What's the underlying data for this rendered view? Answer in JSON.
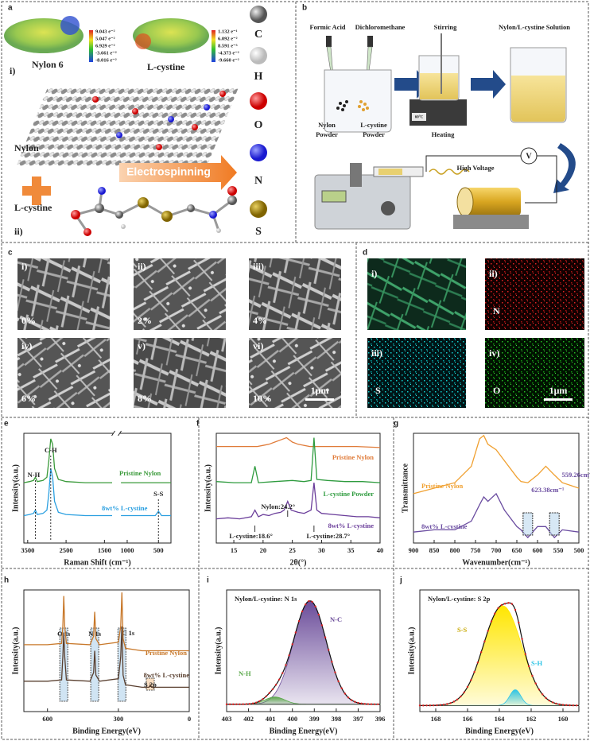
{
  "panels": {
    "a": {
      "letter": "a",
      "molecule_1": "Nylon 6",
      "molecule_2": "L-cystine",
      "colorbar_1": [
        "9.043 e⁻²",
        "5.047 e⁻²",
        "6.929 e⁻²",
        "-3.661 e⁻²",
        "-8.016 e⁻²"
      ],
      "colorbar_2": [
        "1.132 e⁻¹",
        "6.092 e⁻²",
        "8.591 e⁻³",
        "-4.373 e⁻²",
        "-9.660 e⁻²"
      ],
      "part_1": "i)",
      "part_2": "ii)",
      "polymer": "Nylon",
      "additive": "L-cystine",
      "process": "Electrospinning",
      "elements": [
        "C",
        "H",
        "O",
        "N",
        "S"
      ]
    },
    "b": {
      "letter": "b",
      "solvent_1": "Formic Acid",
      "solvent_2": "Dichloromethane",
      "step_1": "Stirring",
      "product": "Nylon/L-cystine Solution",
      "powder_1": [
        "Nylon",
        "Powder"
      ],
      "powder_2": [
        "L-cystine",
        "Powder"
      ],
      "step_2": "Heating",
      "temperature": "60°C",
      "voltage_symbol": "V",
      "voltage": "High Voltage"
    },
    "c": {
      "letter": "c",
      "images": [
        {
          "label": "i)",
          "content": "0%"
        },
        {
          "label": "ii)",
          "content": "2%"
        },
        {
          "label": "iii)",
          "content": "4%"
        },
        {
          "label": "iv)",
          "content": "6%"
        },
        {
          "label": "v)",
          "content": "8%"
        },
        {
          "label": "vi)",
          "content": "10%"
        }
      ],
      "scale_bar": "1μm"
    },
    "d": {
      "letter": "d",
      "images": [
        {
          "label": "i)"
        },
        {
          "label": "ii)",
          "element": "N"
        },
        {
          "label": "iii)",
          "element": "S"
        },
        {
          "label": "iv)",
          "element": "O"
        }
      ],
      "scale_bar": "1μm"
    },
    "e": {
      "letter": "e",
      "type": "line",
      "xlabel": "Raman Shift (cm⁻¹)",
      "ylabel": "Intensity(a.u.)",
      "x_segments": [
        [
          3600,
          1300
        ],
        [
          1100,
          300
        ]
      ],
      "ylim": [
        0,
        1
      ],
      "xticks": [
        3500,
        2500,
        1500,
        1000,
        500
      ],
      "series": [
        {
          "name": "Pristine Nylon",
          "color": "#3a9a3a",
          "x": [
            3600,
            3450,
            3350,
            3300,
            3250,
            3100,
            3000,
            2950,
            2900,
            2850,
            2800,
            2700,
            2500,
            2000,
            1500,
            1300,
            1200,
            1100,
            900,
            700,
            550,
            500,
            450,
            300
          ],
          "values": [
            0.55,
            0.56,
            0.57,
            0.6,
            0.56,
            0.57,
            0.6,
            0.75,
            0.95,
            0.9,
            0.68,
            0.58,
            0.56,
            0.55,
            0.55,
            0.55,
            null,
            0.55,
            0.55,
            0.55,
            0.55,
            0.55,
            0.55,
            0.55
          ]
        },
        {
          "name": "8wt% L-cystine",
          "color": "#2a9fe0",
          "x": [
            3600,
            3450,
            3350,
            3300,
            3250,
            3100,
            3000,
            2950,
            2900,
            2850,
            2800,
            2700,
            2500,
            2000,
            1500,
            1300,
            1200,
            1100,
            900,
            700,
            550,
            500,
            450,
            300
          ],
          "values": [
            0.25,
            0.26,
            0.27,
            0.3,
            0.26,
            0.27,
            0.3,
            0.45,
            0.68,
            0.6,
            0.38,
            0.28,
            0.26,
            0.25,
            0.25,
            0.25,
            null,
            0.25,
            0.25,
            0.25,
            0.25,
            0.29,
            0.25,
            0.25
          ]
        }
      ],
      "annotations": [
        {
          "label": "C-H",
          "x": 2900
        },
        {
          "label": "N-H",
          "x": 3300
        },
        {
          "label": "S-S",
          "x": 500
        }
      ]
    },
    "f": {
      "letter": "f",
      "type": "line",
      "xlabel": "2θ(°)",
      "ylabel": "Intensity(a.u.)",
      "xlim": [
        12,
        40
      ],
      "ylim": [
        0,
        1
      ],
      "xticks": [
        15,
        20,
        25,
        30,
        35,
        40
      ],
      "series": [
        {
          "name": "Pristine Nylon",
          "color": "#e07b39",
          "x": [
            12,
            16,
            19,
            20,
            21,
            22,
            23,
            24,
            25,
            26,
            28,
            32,
            36,
            40
          ],
          "values": [
            0.88,
            0.88,
            0.88,
            0.89,
            0.9,
            0.92,
            0.94,
            0.96,
            0.92,
            0.9,
            0.88,
            0.88,
            0.88,
            0.87
          ]
        },
        {
          "name": "L-cystine Powder",
          "color": "#2e9b3e",
          "x": [
            12,
            15,
            18,
            18.6,
            19.2,
            22,
            25,
            27,
            28.2,
            28.7,
            29.2,
            31,
            34,
            37,
            40
          ],
          "values": [
            0.56,
            0.55,
            0.55,
            0.7,
            0.55,
            0.56,
            0.57,
            0.56,
            0.57,
            0.96,
            0.58,
            0.57,
            0.56,
            0.56,
            0.55
          ]
        },
        {
          "name": "8wt% L-cystine",
          "color": "#6a3d9a",
          "x": [
            12,
            14,
            16,
            18,
            18.6,
            19.2,
            20,
            21,
            22,
            23,
            23.6,
            24.2,
            24.8,
            26,
            27,
            28.2,
            28.7,
            29.2,
            30,
            32,
            34,
            36,
            38,
            40
          ],
          "values": [
            0.22,
            0.23,
            0.22,
            0.24,
            0.3,
            0.24,
            0.26,
            0.25,
            0.27,
            0.28,
            0.3,
            0.38,
            0.3,
            0.28,
            0.27,
            0.3,
            0.55,
            0.3,
            0.27,
            0.26,
            0.25,
            0.24,
            0.24,
            0.23
          ]
        }
      ],
      "annotations": [
        {
          "label": "Nylon:24.2°",
          "x": 24.2
        },
        {
          "label": "L-cystine:18.6°",
          "x": 18.6
        },
        {
          "label": "L-cystine:28.7°",
          "x": 28.7
        }
      ]
    },
    "g": {
      "letter": "g",
      "type": "line",
      "xlabel": "Wavenumber(cm⁻¹)",
      "ylabel": "Transmittance",
      "xlim": [
        900,
        500
      ],
      "ylim": [
        0,
        1
      ],
      "xticks": [
        900,
        850,
        800,
        750,
        700,
        650,
        600,
        550,
        500
      ],
      "series": [
        {
          "name": "Pristine Nylon",
          "color": "#f0a030",
          "x": [
            900,
            850,
            800,
            760,
            740,
            730,
            720,
            700,
            680,
            650,
            640,
            623.38,
            600,
            580,
            559.26,
            540,
            500
          ],
          "values": [
            0.45,
            0.5,
            0.55,
            0.7,
            0.95,
            0.98,
            0.9,
            0.85,
            0.75,
            0.6,
            0.56,
            0.55,
            0.62,
            0.7,
            0.62,
            0.55,
            0.5
          ]
        },
        {
          "name": "8wt% L-cystine",
          "color": "#6a4ca0",
          "x": [
            900,
            850,
            800,
            760,
            740,
            730,
            720,
            700,
            680,
            650,
            640,
            623.38,
            600,
            580,
            559.26,
            540,
            500
          ],
          "values": [
            0.1,
            0.12,
            0.12,
            0.2,
            0.35,
            0.42,
            0.38,
            0.45,
            0.3,
            0.15,
            0.12,
            0.05,
            0.15,
            0.15,
            0.05,
            0.12,
            0.1
          ]
        }
      ],
      "annotations": [
        {
          "label": "623.38cm⁻¹",
          "x": 623.38
        },
        {
          "label": "559.26cm⁻¹",
          "x": 559.26
        }
      ]
    },
    "h": {
      "letter": "h",
      "type": "line",
      "xlabel": "Binding Energy(eV)",
      "ylabel": "Intensity(a.u.)",
      "xlim": [
        700,
        0
      ],
      "ylim": [
        0,
        1
      ],
      "xticks": [
        600,
        300,
        0
      ],
      "series": [
        {
          "name": "Pristine Nylon",
          "color": "#c8782a",
          "x": [
            700,
            600,
            540,
            535,
            531,
            527,
            520,
            420,
            405,
            400,
            395,
            380,
            300,
            290,
            285,
            280,
            270,
            200,
            170,
            165,
            160,
            0
          ],
          "values": [
            0.55,
            0.55,
            0.56,
            0.7,
            0.95,
            0.7,
            0.56,
            0.55,
            0.62,
            0.82,
            0.6,
            0.55,
            0.57,
            0.7,
            0.98,
            0.6,
            0.52,
            0.5,
            0.5,
            0.5,
            0.5,
            0.5
          ]
        },
        {
          "name": "8wt% L-cystine",
          "color": "#5a4030",
          "x": [
            700,
            600,
            540,
            535,
            531,
            527,
            520,
            420,
            405,
            400,
            395,
            380,
            300,
            290,
            285,
            280,
            270,
            200,
            170,
            165,
            160,
            0
          ],
          "values": [
            0.25,
            0.25,
            0.26,
            0.45,
            0.65,
            0.45,
            0.26,
            0.25,
            0.32,
            0.5,
            0.3,
            0.25,
            0.27,
            0.45,
            0.7,
            0.3,
            0.22,
            0.2,
            0.2,
            0.22,
            0.2,
            0.2
          ]
        }
      ],
      "regions": [
        {
          "label": "O 1s",
          "x": 531
        },
        {
          "label": "N 1s",
          "x": 400
        },
        {
          "label": "C 1s",
          "x": 285
        },
        {
          "label": "S 2p",
          "x": 165
        }
      ]
    },
    "i": {
      "letter": "i",
      "type": "peakfit",
      "title": "Nylon/L-cystine: N 1s",
      "xlabel": "Binding Energy(eV)",
      "ylabel": "Intensity(a.u.)",
      "xlim": [
        403,
        396
      ],
      "ylim": [
        0,
        1
      ],
      "xticks": [
        403,
        402,
        401,
        400,
        399,
        398,
        397,
        396
      ],
      "background": 0.06,
      "peaks": [
        {
          "name": "N-C",
          "center": 399.2,
          "height": 0.85,
          "width": 0.75,
          "color": "#6b4c9a"
        },
        {
          "name": "N-H",
          "center": 400.8,
          "height": 0.06,
          "width": 0.45,
          "color": "#5aa84a"
        }
      ]
    },
    "j": {
      "letter": "j",
      "type": "peakfit",
      "title": "Nylon/L-cystine: S 2p",
      "xlabel": "Binding Energy(eV)",
      "ylabel": "Intensity(a.u.)",
      "xlim": [
        169,
        159
      ],
      "ylim": [
        0,
        1
      ],
      "xticks": [
        168,
        166,
        164,
        162,
        160
      ],
      "background": 0.05,
      "peaks": [
        {
          "name": "S-S",
          "center": 163.8,
          "height": 0.82,
          "width": 1.2,
          "color": "#ffe600"
        },
        {
          "name": "S-H",
          "center": 163.0,
          "height": 0.13,
          "width": 0.35,
          "color": "#2ec4e6"
        }
      ]
    }
  }
}
